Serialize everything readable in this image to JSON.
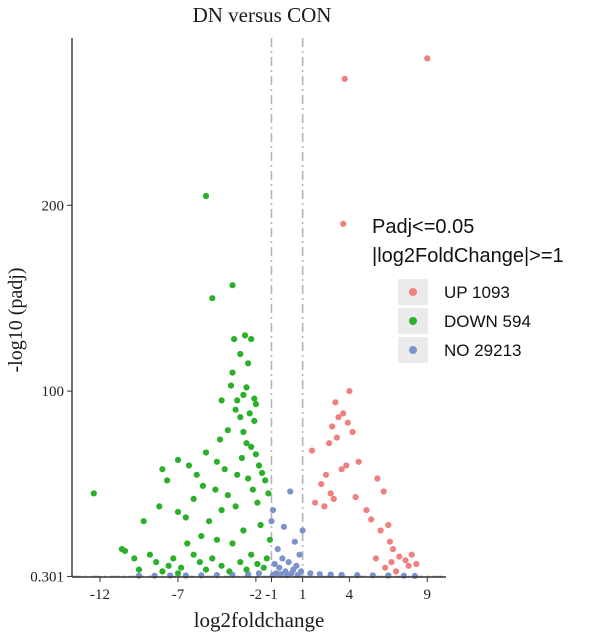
{
  "chart_data": {
    "type": "scatter",
    "title": "DN versus CON",
    "xlabel": "log2foldchange",
    "ylabel": "-log10 (padj)",
    "xlim": [
      -13.8,
      10.2
    ],
    "ylim": [
      0,
      290
    ],
    "x_ticks": [
      {
        "value": -12,
        "label": "-12"
      },
      {
        "value": -7,
        "label": "-7"
      },
      {
        "value": -2,
        "label": "-2"
      },
      {
        "value": -1,
        "label": "-1"
      },
      {
        "value": 1,
        "label": "1"
      },
      {
        "value": 4,
        "label": "4"
      },
      {
        "value": 9,
        "label": "9"
      }
    ],
    "y_ticks": [
      {
        "value": 0.301,
        "label": "0.301"
      },
      {
        "value": 100,
        "label": "100"
      },
      {
        "value": 200,
        "label": "200"
      }
    ],
    "thresholds": {
      "x": [
        -1,
        1
      ],
      "y": 0.301
    },
    "grid": false,
    "legend": {
      "position": "right",
      "title_line1": "Padj<=0.05",
      "title_line2": "|log2FoldChange|>=1",
      "entries": [
        {
          "label": "UP 1093",
          "color": "#f08080"
        },
        {
          "label": "DOWN 594",
          "color": "#2ab02a"
        },
        {
          "label": "NO 29213",
          "color": "#7b93c8"
        }
      ]
    },
    "series": [
      {
        "name": "UP 1093",
        "color": "#f08080",
        "points": [
          [
            9.0,
            279
          ],
          [
            3.7,
            268
          ],
          [
            1.6,
            68
          ],
          [
            4.0,
            100
          ],
          [
            3.1,
            94
          ],
          [
            3.6,
            88
          ],
          [
            3.3,
            86
          ],
          [
            3.9,
            83
          ],
          [
            2.9,
            81
          ],
          [
            4.2,
            78
          ],
          [
            3.2,
            75
          ],
          [
            2.7,
            72
          ],
          [
            4.6,
            62
          ],
          [
            3.8,
            60
          ],
          [
            5.8,
            53
          ],
          [
            6.2,
            46
          ],
          [
            3.5,
            58
          ],
          [
            2.5,
            55
          ],
          [
            2.2,
            50
          ],
          [
            2.8,
            45
          ],
          [
            1.8,
            40
          ],
          [
            2.4,
            38
          ],
          [
            3.0,
            42
          ],
          [
            4.4,
            43
          ],
          [
            5.1,
            36
          ],
          [
            5.4,
            31
          ],
          [
            6.0,
            25
          ],
          [
            6.6,
            19
          ],
          [
            6.8,
            15
          ],
          [
            7.2,
            11
          ],
          [
            7.6,
            9
          ],
          [
            8.0,
            12
          ],
          [
            7.8,
            6
          ],
          [
            5.7,
            10
          ],
          [
            6.3,
            5
          ],
          [
            7.0,
            3
          ],
          [
            8.3,
            7
          ],
          [
            6.7,
            8
          ],
          [
            6.5,
            28
          ]
        ]
      },
      {
        "name": "DOWN 594",
        "color": "#2ab02a",
        "points": [
          [
            -12.4,
            45
          ],
          [
            -5.2,
            205
          ],
          [
            -3.5,
            157
          ],
          [
            -4.8,
            150
          ],
          [
            -2.7,
            130
          ],
          [
            -2.3,
            128
          ],
          [
            -3.4,
            128
          ],
          [
            -3.0,
            120
          ],
          [
            -3.5,
            110
          ],
          [
            -2.5,
            115
          ],
          [
            -3.6,
            103
          ],
          [
            -2.6,
            102
          ],
          [
            -2.8,
            98
          ],
          [
            -2.1,
            96
          ],
          [
            -3.2,
            95
          ],
          [
            -4.2,
            95
          ],
          [
            -2.0,
            93
          ],
          [
            -3.3,
            90
          ],
          [
            -2.4,
            88
          ],
          [
            -3.0,
            86
          ],
          [
            -2.1,
            84
          ],
          [
            -3.8,
            79
          ],
          [
            -2.8,
            78
          ],
          [
            -4.3,
            74
          ],
          [
            -2.6,
            72
          ],
          [
            -2.3,
            70
          ],
          [
            -5.2,
            67
          ],
          [
            -4.5,
            62
          ],
          [
            -7.0,
            63
          ],
          [
            -2.0,
            66
          ],
          [
            -2.9,
            64
          ],
          [
            -6.3,
            60
          ],
          [
            -8.0,
            58
          ],
          [
            -5.8,
            55
          ],
          [
            -4.0,
            58
          ],
          [
            -3.2,
            55
          ],
          [
            -1.8,
            60
          ],
          [
            -7.7,
            52
          ],
          [
            -5.4,
            49
          ],
          [
            -4.6,
            47
          ],
          [
            -2.5,
            53
          ],
          [
            -1.6,
            56
          ],
          [
            -6.0,
            42
          ],
          [
            -8.2,
            38
          ],
          [
            -3.8,
            44
          ],
          [
            -2.2,
            47
          ],
          [
            -1.4,
            52
          ],
          [
            -1.2,
            45
          ],
          [
            -9.2,
            30
          ],
          [
            -7.0,
            35
          ],
          [
            -6.5,
            32
          ],
          [
            -5.0,
            30
          ],
          [
            -4.2,
            36
          ],
          [
            -3.3,
            38
          ],
          [
            -1.9,
            40
          ],
          [
            -10.6,
            15
          ],
          [
            -10.4,
            14
          ],
          [
            -9.8,
            10
          ],
          [
            -8.8,
            12
          ],
          [
            -8.4,
            8
          ],
          [
            -7.6,
            6
          ],
          [
            -7.3,
            10
          ],
          [
            -6.8,
            5
          ],
          [
            -6.0,
            12
          ],
          [
            -5.6,
            8
          ],
          [
            -5.2,
            4
          ],
          [
            -4.8,
            10
          ],
          [
            -4.2,
            6
          ],
          [
            -3.7,
            3
          ],
          [
            -3.0,
            8
          ],
          [
            -2.6,
            4
          ],
          [
            -2.3,
            12
          ],
          [
            -1.9,
            7
          ],
          [
            -1.5,
            5
          ],
          [
            -1.3,
            10
          ],
          [
            -9.5,
            4
          ],
          [
            -8.0,
            3
          ],
          [
            -7.0,
            2
          ],
          [
            -4.5,
            20
          ],
          [
            -3.5,
            18
          ],
          [
            -5.5,
            22
          ],
          [
            -6.4,
            18
          ],
          [
            -2.8,
            25
          ],
          [
            -1.7,
            28
          ],
          [
            -1.1,
            20
          ]
        ]
      },
      {
        "name": "NO 29213",
        "color": "#7b93c8",
        "points": [
          [
            0.2,
            46
          ],
          [
            -0.9,
            36
          ],
          [
            -0.2,
            27
          ],
          [
            0.5,
            19
          ],
          [
            -0.6,
            15
          ],
          [
            0.8,
            12
          ],
          [
            -0.3,
            10
          ],
          [
            0.1,
            8
          ],
          [
            -0.8,
            7
          ],
          [
            0.6,
            6
          ],
          [
            -0.5,
            5
          ],
          [
            0.4,
            4
          ],
          [
            -0.1,
            3
          ],
          [
            0.9,
            3
          ],
          [
            -0.7,
            2
          ],
          [
            0.3,
            2
          ],
          [
            -0.4,
            1.5
          ],
          [
            0.7,
            1.2
          ],
          [
            0.0,
            1
          ],
          [
            -0.9,
            1
          ],
          [
            1.5,
            2
          ],
          [
            2.1,
            1.5
          ],
          [
            2.8,
            1.3
          ],
          [
            3.5,
            1.1
          ],
          [
            4.5,
            1
          ],
          [
            5.5,
            0.9
          ],
          [
            6.5,
            0.8
          ],
          [
            -1.8,
            2
          ],
          [
            -2.5,
            1.5
          ],
          [
            -3.5,
            1.2
          ],
          [
            -4.5,
            1
          ],
          [
            -5.5,
            0.9
          ],
          [
            -6.5,
            0.8
          ],
          [
            -7.5,
            0.8
          ],
          [
            -8.5,
            0.7
          ],
          [
            -9.5,
            0.7
          ],
          [
            7.5,
            0.7
          ],
          [
            8.2,
            0.6
          ],
          [
            -1.0,
            30
          ],
          [
            1.0,
            25
          ]
        ]
      }
    ]
  }
}
